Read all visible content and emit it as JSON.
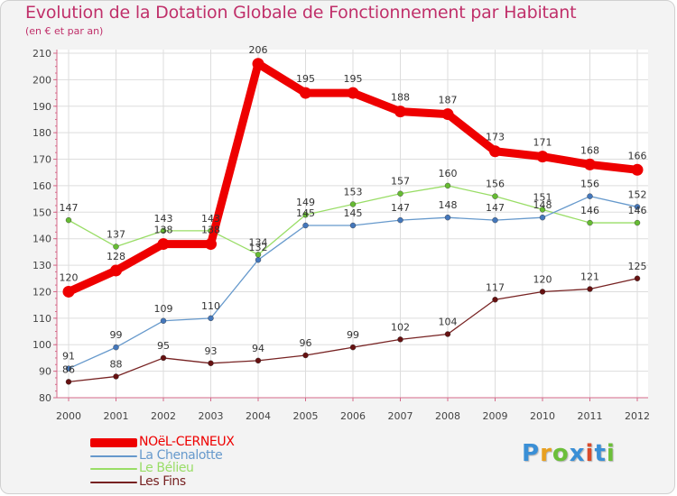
{
  "chart_data": {
    "type": "line",
    "title": "Evolution de la Dotation Globale de Fonctionnement par Habitant",
    "subtitle": "(en € et par an)",
    "categories": [
      "2000",
      "2001",
      "2002",
      "2003",
      "2004",
      "2005",
      "2006",
      "2007",
      "2008",
      "2009",
      "2010",
      "2011",
      "2012"
    ],
    "ylim": [
      80,
      210
    ],
    "yticks": [
      80,
      90,
      100,
      110,
      120,
      130,
      140,
      150,
      160,
      170,
      180,
      190,
      200,
      210
    ],
    "grid": true,
    "legend_position": "bottom-left",
    "series": [
      {
        "name": "NOëL-CERNEUX",
        "color": "#ee0000",
        "values": [
          120,
          128,
          138,
          138,
          206,
          195,
          195,
          188,
          187,
          173,
          171,
          168,
          166
        ]
      },
      {
        "name": "La Chenalotte",
        "color": "#6699cc",
        "values": [
          91,
          99,
          109,
          110,
          132,
          145,
          145,
          147,
          148,
          147,
          148,
          156,
          152
        ]
      },
      {
        "name": "Le Bélieu",
        "color": "#99dd66",
        "values": [
          147,
          137,
          143,
          143,
          134,
          149,
          153,
          157,
          160,
          156,
          151,
          146,
          146
        ]
      },
      {
        "name": "Les Fins",
        "color": "#772222",
        "values": [
          86,
          88,
          95,
          93,
          94,
          96,
          99,
          102,
          104,
          117,
          120,
          121,
          125
        ]
      }
    ]
  },
  "legend": {
    "items": [
      {
        "label": "NOëL-CERNEUX",
        "color": "#ee0000"
      },
      {
        "label": "La Chenalotte",
        "color": "#6699cc"
      },
      {
        "label": "Le Bélieu",
        "color": "#99dd66"
      },
      {
        "label": "Les Fins",
        "color": "#772222"
      }
    ]
  },
  "logo": {
    "text": "Proxiti",
    "colors": [
      "#3a8fd6",
      "#e8a020",
      "#6cbf3a",
      "#3a8fd6",
      "#d94a2a",
      "#3a8fd6",
      "#6cbf3a"
    ]
  },
  "colors": {
    "title": "#c0306a",
    "axis": "#d46a8a",
    "grid": "#dddddd",
    "label": "#444444"
  }
}
